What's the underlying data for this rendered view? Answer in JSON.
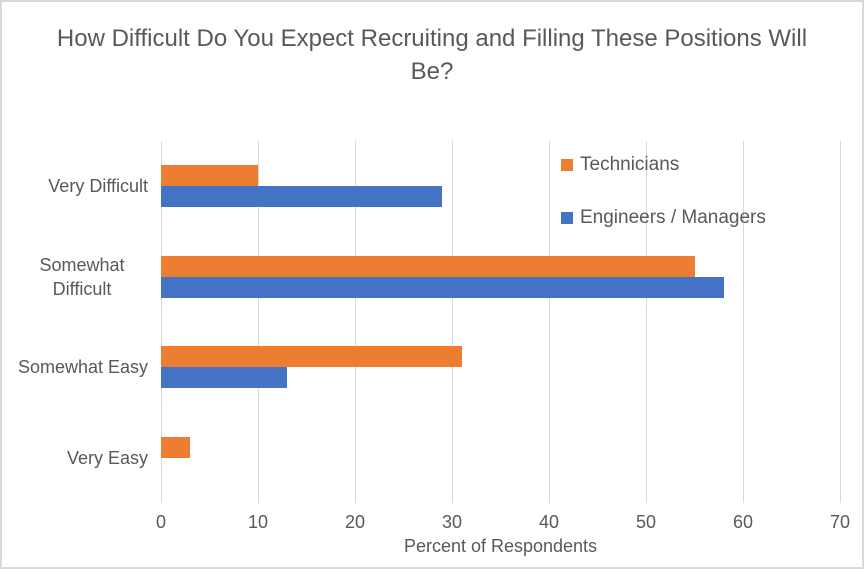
{
  "chart_data": {
    "type": "bar",
    "orientation": "horizontal",
    "title": "How Difficult Do You Expect Recruiting and Filling These Positions Will Be?",
    "categories": [
      "Very Difficult",
      "Somewhat Difficult",
      "Somewhat Easy",
      "Very Easy"
    ],
    "series": [
      {
        "name": "Technicians",
        "color": "#ED7D31",
        "values": [
          10,
          55,
          31,
          3
        ]
      },
      {
        "name": "Engineers / Managers",
        "color": "#4472C4",
        "values": [
          29,
          58,
          13,
          0
        ]
      }
    ],
    "series_order_note": "first series drawn as top bar of each category group",
    "xlabel": "Percent of Respondents",
    "ylabel": "",
    "xlim": [
      0,
      70
    ],
    "xticks": [
      0,
      10,
      20,
      30,
      40,
      50,
      60,
      70
    ],
    "grid": true,
    "legend_position": "inside-top-right",
    "data_labels": false,
    "style": {
      "text_color": "#595959",
      "gridline_color": "#D9D9D9",
      "border_color": "#D9D9D9",
      "background_color": "#FFFFFF"
    }
  }
}
